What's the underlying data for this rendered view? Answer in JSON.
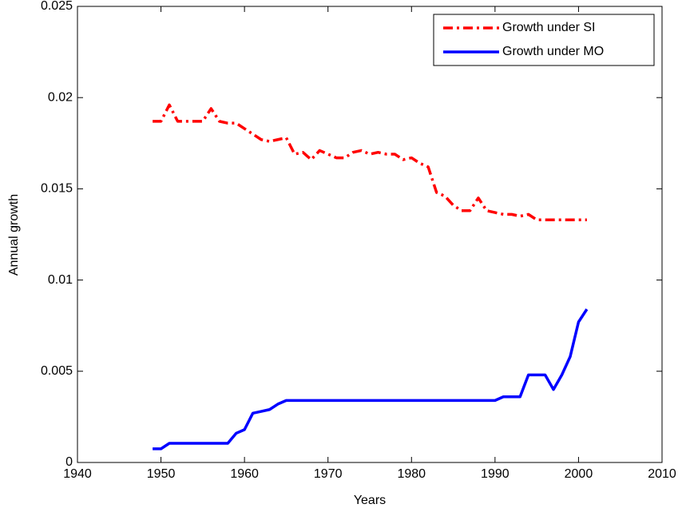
{
  "chart_data": {
    "type": "line",
    "xlabel": "Years",
    "ylabel": "Annual growth",
    "x": [
      1949,
      1950,
      1951,
      1952,
      1953,
      1954,
      1955,
      1956,
      1957,
      1958,
      1959,
      1960,
      1961,
      1962,
      1963,
      1964,
      1965,
      1966,
      1967,
      1968,
      1969,
      1970,
      1971,
      1972,
      1973,
      1974,
      1975,
      1976,
      1977,
      1978,
      1979,
      1980,
      1981,
      1982,
      1983,
      1984,
      1985,
      1986,
      1987,
      1988,
      1989,
      1990,
      1991,
      1992,
      1993,
      1994,
      1995,
      1996,
      1997,
      1998,
      1999,
      2000,
      2001
    ],
    "series": [
      {
        "name": "Growth under SI",
        "color": "#ff0000",
        "style": "dashdot",
        "values": [
          0.0187,
          0.0187,
          0.0196,
          0.0187,
          0.0187,
          0.0187,
          0.0187,
          0.0194,
          0.0187,
          0.0186,
          0.0186,
          0.0183,
          0.018,
          0.0177,
          0.0176,
          0.0177,
          0.0178,
          0.0169,
          0.017,
          0.0166,
          0.0171,
          0.0169,
          0.0167,
          0.0167,
          0.017,
          0.0171,
          0.0169,
          0.017,
          0.0169,
          0.0169,
          0.0166,
          0.0167,
          0.0164,
          0.0162,
          0.0148,
          0.0146,
          0.0141,
          0.0138,
          0.0138,
          0.0145,
          0.0138,
          0.0137,
          0.0136,
          0.0136,
          0.0135,
          0.0136,
          0.0133,
          0.0133,
          0.0133,
          0.0133,
          0.0133,
          0.0133,
          0.0133
        ]
      },
      {
        "name": "Growth under MO",
        "color": "#0000ff",
        "style": "solid",
        "values": [
          0.00075,
          0.00075,
          0.00105,
          0.00105,
          0.00105,
          0.00105,
          0.00105,
          0.00105,
          0.00105,
          0.00105,
          0.0016,
          0.0018,
          0.0027,
          0.0028,
          0.0029,
          0.0032,
          0.0034,
          0.0034,
          0.0034,
          0.0034,
          0.0034,
          0.0034,
          0.0034,
          0.0034,
          0.0034,
          0.0034,
          0.0034,
          0.0034,
          0.0034,
          0.0034,
          0.0034,
          0.0034,
          0.0034,
          0.0034,
          0.0034,
          0.0034,
          0.0034,
          0.0034,
          0.0034,
          0.0034,
          0.0034,
          0.0034,
          0.0036,
          0.0036,
          0.0036,
          0.0048,
          0.0048,
          0.0048,
          0.004,
          0.0048,
          0.0058,
          0.0077,
          0.0084
        ]
      }
    ],
    "xlim": [
      1940,
      2010
    ],
    "xticks": [
      1940,
      1950,
      1960,
      1970,
      1980,
      1990,
      2000,
      2010
    ],
    "ylim": [
      0,
      0.025
    ],
    "yticks": [
      0,
      0.005,
      0.01,
      0.015,
      0.02,
      0.025
    ],
    "legend": "upper right",
    "grid": false
  }
}
